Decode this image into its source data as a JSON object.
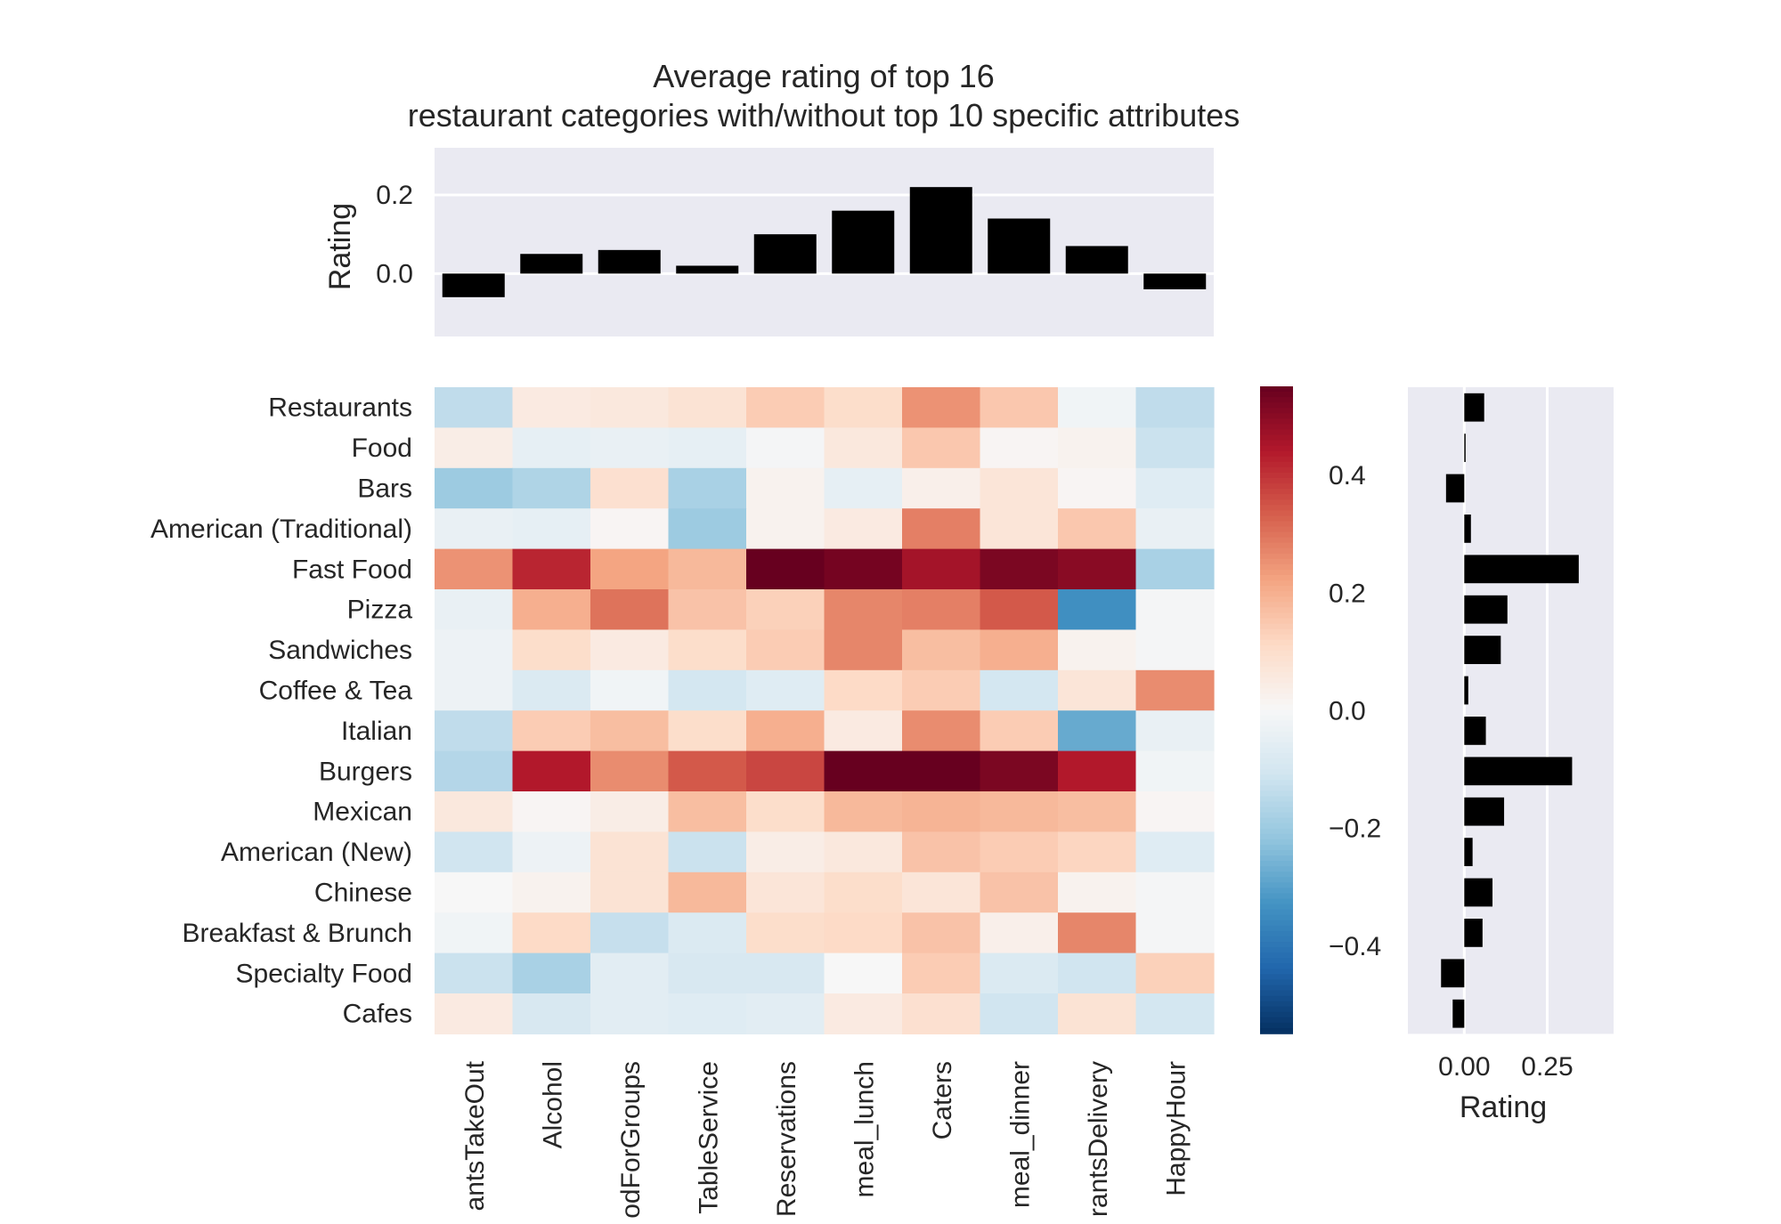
{
  "chart_data": [
    {
      "type": "heatmap",
      "title_lines": [
        "Average rating of top 16",
        "restaurant categories with/without top 10 specific attributes"
      ],
      "rows": [
        "Restaurants",
        "Food",
        "Bars",
        "American (Traditional)",
        "Fast Food",
        "Pizza",
        "Sandwiches",
        "Coffee & Tea",
        "Italian",
        "Burgers",
        "Mexican",
        "American (New)",
        "Chinese",
        "Breakfast & Brunch",
        "Specialty Food",
        "Cafes"
      ],
      "columns": [
        "antsTakeOut",
        "Alcohol",
        "odForGroups",
        "TableService",
        "Reservations",
        "meal_lunch",
        "Caters",
        "meal_dinner",
        "rantsDelivery",
        "HappyHour"
      ],
      "values": [
        [
          -0.14,
          0.05,
          0.06,
          0.08,
          0.14,
          0.1,
          0.25,
          0.15,
          -0.02,
          -0.14
        ],
        [
          0.04,
          -0.05,
          -0.04,
          -0.05,
          -0.01,
          0.06,
          0.15,
          0.01,
          0.02,
          -0.12
        ],
        [
          -0.2,
          -0.17,
          0.09,
          -0.18,
          0.02,
          -0.05,
          0.03,
          0.07,
          0.01,
          -0.07
        ],
        [
          -0.04,
          -0.05,
          0.01,
          -0.2,
          0.02,
          0.05,
          0.28,
          0.07,
          0.15,
          -0.04
        ],
        [
          0.25,
          0.42,
          0.22,
          0.18,
          0.56,
          0.53,
          0.46,
          0.52,
          0.5,
          -0.18
        ],
        [
          -0.04,
          0.2,
          0.3,
          0.16,
          0.13,
          0.27,
          0.28,
          0.34,
          -0.34,
          -0.01
        ],
        [
          -0.03,
          0.1,
          0.05,
          0.1,
          0.14,
          0.27,
          0.17,
          0.2,
          0.02,
          -0.01
        ],
        [
          -0.03,
          -0.08,
          -0.02,
          -0.1,
          -0.07,
          0.11,
          0.14,
          -0.1,
          0.07,
          0.26
        ],
        [
          -0.14,
          0.14,
          0.17,
          0.1,
          0.2,
          0.05,
          0.26,
          0.14,
          -0.28,
          -0.04
        ],
        [
          -0.16,
          0.44,
          0.26,
          0.34,
          0.37,
          0.58,
          0.6,
          0.52,
          0.44,
          -0.02
        ],
        [
          0.06,
          0.01,
          0.04,
          0.17,
          0.1,
          0.18,
          0.19,
          0.18,
          0.17,
          0.01
        ],
        [
          -0.11,
          -0.03,
          0.08,
          -0.12,
          0.04,
          0.06,
          0.16,
          0.14,
          0.12,
          -0.07
        ],
        [
          0.0,
          0.02,
          0.08,
          0.18,
          0.07,
          0.1,
          0.07,
          0.16,
          0.02,
          -0.01
        ],
        [
          -0.02,
          0.11,
          -0.13,
          -0.08,
          0.1,
          0.11,
          0.16,
          0.03,
          0.27,
          -0.01
        ],
        [
          -0.12,
          -0.18,
          -0.06,
          -0.09,
          -0.09,
          0.0,
          0.14,
          -0.08,
          -0.11,
          0.13
        ],
        [
          0.05,
          -0.09,
          -0.06,
          -0.07,
          -0.06,
          0.05,
          0.09,
          -0.11,
          0.08,
          -0.1
        ]
      ],
      "vmin": -0.55,
      "vmax": 0.55,
      "colormap": "RdBu_r"
    },
    {
      "type": "bar",
      "orientation": "vertical",
      "categories": [
        "antsTakeOut",
        "Alcohol",
        "odForGroups",
        "TableService",
        "Reservations",
        "meal_lunch",
        "Caters",
        "meal_dinner",
        "rantsDelivery",
        "HappyHour"
      ],
      "values": [
        -0.06,
        0.05,
        0.06,
        0.02,
        0.1,
        0.16,
        0.22,
        0.14,
        0.07,
        -0.04
      ],
      "ylabel": "Rating",
      "ylim": [
        -0.16,
        0.32
      ],
      "yticks": [
        "0.0",
        "0.2"
      ],
      "bar_color": "#000000",
      "background": "#eaeaf2"
    },
    {
      "type": "bar",
      "orientation": "horizontal",
      "categories": [
        "Restaurants",
        "Food",
        "Bars",
        "American (Traditional)",
        "Fast Food",
        "Pizza",
        "Sandwiches",
        "Coffee & Tea",
        "Italian",
        "Burgers",
        "Mexican",
        "American (New)",
        "Chinese",
        "Breakfast & Brunch",
        "Specialty Food",
        "Cafes"
      ],
      "values": [
        0.06,
        0.0,
        -0.055,
        0.02,
        0.345,
        0.13,
        0.11,
        0.012,
        0.065,
        0.325,
        0.12,
        0.025,
        0.085,
        0.055,
        -0.07,
        -0.035
      ],
      "xlabel": "Rating",
      "xlim": [
        -0.17,
        0.45
      ],
      "xticks": [
        "0.00",
        "0.25"
      ],
      "bar_color": "#000000",
      "background": "#eaeaf2"
    },
    {
      "type": "colorbar",
      "vmin": -0.55,
      "vmax": 0.55,
      "ticks": [
        "0.4",
        "0.2",
        "0.0",
        "−0.2",
        "−0.4"
      ],
      "tick_values": [
        0.4,
        0.2,
        0.0,
        -0.2,
        -0.4
      ]
    }
  ]
}
